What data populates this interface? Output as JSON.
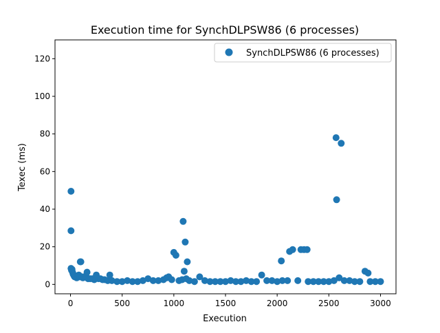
{
  "chart_data": {
    "type": "scatter",
    "title": "Execution time for SynchDLPSW86 (6 processes)",
    "xlabel": "Execution",
    "ylabel": "Texec (ms)",
    "xlim": [
      -150,
      3150
    ],
    "ylim": [
      -5,
      130
    ],
    "xticks": [
      0,
      500,
      1000,
      1500,
      2000,
      2500,
      3000
    ],
    "yticks": [
      0,
      20,
      40,
      60,
      80,
      100,
      120
    ],
    "legend": {
      "position": "top-right"
    },
    "series": [
      {
        "name": "SynchDLPSW86 (6 processes)",
        "color": "#1f77b4",
        "points": [
          [
            5,
            49.5
          ],
          [
            5,
            28.5
          ],
          [
            5,
            8.5
          ],
          [
            10,
            7.5
          ],
          [
            15,
            8
          ],
          [
            20,
            6.5
          ],
          [
            25,
            5.5
          ],
          [
            30,
            5
          ],
          [
            35,
            4.5
          ],
          [
            40,
            4
          ],
          [
            50,
            4
          ],
          [
            60,
            3.5
          ],
          [
            70,
            4.5
          ],
          [
            80,
            5
          ],
          [
            90,
            4
          ],
          [
            95,
            12
          ],
          [
            100,
            12
          ],
          [
            110,
            4
          ],
          [
            120,
            3.5
          ],
          [
            130,
            4
          ],
          [
            150,
            4.5
          ],
          [
            160,
            6.5
          ],
          [
            170,
            3
          ],
          [
            190,
            3
          ],
          [
            210,
            3
          ],
          [
            230,
            2.5
          ],
          [
            250,
            5
          ],
          [
            270,
            3
          ],
          [
            290,
            3
          ],
          [
            310,
            2.5
          ],
          [
            330,
            2.5
          ],
          [
            360,
            2
          ],
          [
            380,
            5
          ],
          [
            400,
            2
          ],
          [
            450,
            1.5
          ],
          [
            500,
            1.5
          ],
          [
            550,
            2
          ],
          [
            600,
            1.5
          ],
          [
            650,
            1.5
          ],
          [
            700,
            2
          ],
          [
            750,
            3
          ],
          [
            800,
            2
          ],
          [
            850,
            2
          ],
          [
            900,
            2.5
          ],
          [
            930,
            3.5
          ],
          [
            950,
            4
          ],
          [
            980,
            2.5
          ],
          [
            1000,
            17
          ],
          [
            1020,
            15.5
          ],
          [
            1050,
            2
          ],
          [
            1080,
            2.5
          ],
          [
            1090,
            33.5
          ],
          [
            1100,
            7
          ],
          [
            1110,
            22.5
          ],
          [
            1120,
            3
          ],
          [
            1130,
            12
          ],
          [
            1150,
            2
          ],
          [
            1200,
            1.5
          ],
          [
            1250,
            4
          ],
          [
            1300,
            2
          ],
          [
            1350,
            1.5
          ],
          [
            1400,
            1.5
          ],
          [
            1450,
            1.5
          ],
          [
            1500,
            1.5
          ],
          [
            1550,
            2
          ],
          [
            1600,
            1.5
          ],
          [
            1650,
            1.5
          ],
          [
            1700,
            2
          ],
          [
            1750,
            1.5
          ],
          [
            1800,
            1.5
          ],
          [
            1850,
            5
          ],
          [
            1900,
            2
          ],
          [
            1950,
            2
          ],
          [
            2000,
            1.5
          ],
          [
            2040,
            12.5
          ],
          [
            2050,
            2
          ],
          [
            2100,
            2
          ],
          [
            2120,
            17.5
          ],
          [
            2150,
            18.5
          ],
          [
            2200,
            2
          ],
          [
            2230,
            18.5
          ],
          [
            2260,
            18.5
          ],
          [
            2290,
            18.5
          ],
          [
            2300,
            1.5
          ],
          [
            2350,
            1.5
          ],
          [
            2400,
            1.5
          ],
          [
            2450,
            1.5
          ],
          [
            2500,
            1.5
          ],
          [
            2550,
            2
          ],
          [
            2570,
            78
          ],
          [
            2575,
            45
          ],
          [
            2600,
            3.5
          ],
          [
            2620,
            75
          ],
          [
            2650,
            2
          ],
          [
            2700,
            2
          ],
          [
            2750,
            1.5
          ],
          [
            2800,
            1.5
          ],
          [
            2850,
            7
          ],
          [
            2880,
            6
          ],
          [
            2900,
            1.5
          ],
          [
            2950,
            1.5
          ],
          [
            3000,
            1.5
          ]
        ]
      }
    ]
  }
}
